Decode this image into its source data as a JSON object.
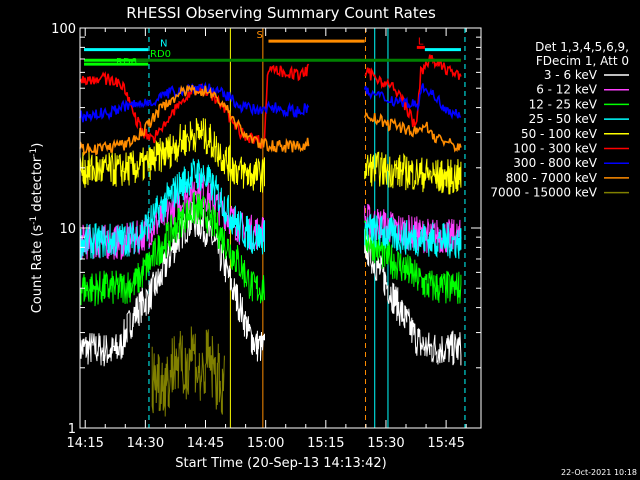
{
  "chart_data": {
    "type": "line",
    "title": "RHESSI Observing Summary Count Rates",
    "xlabel": "Start Time (20-Sep-13 14:13:42)",
    "ylabel_main": "Count Rate (s",
    "ylabel_sup": "-1",
    "ylabel_tail": " detector",
    "ylabel_end": ")",
    "yscale": "log",
    "ylim": [
      1,
      100
    ],
    "xlim_minutes": [
      0,
      100
    ],
    "x_ticks": [
      {
        "label": "14:15",
        "m": 1.3
      },
      {
        "label": "14:30",
        "m": 16.3
      },
      {
        "label": "14:45",
        "m": 31.3
      },
      {
        "label": "15:00",
        "m": 46.3
      },
      {
        "label": "15:15",
        "m": 61.3
      },
      {
        "label": "15:30",
        "m": 76.3
      },
      {
        "label": "15:45",
        "m": 91.3
      }
    ],
    "y_ticks": [
      {
        "label": "1",
        "v": 1
      },
      {
        "label": "10",
        "v": 10
      },
      {
        "label": "100",
        "v": 100
      }
    ],
    "legend_header": [
      "Det 1,3,4,5,6,9,",
      "FDecim 1, Att 0"
    ],
    "series": [
      {
        "name": "3 - 6 keV",
        "color": "#ffffff",
        "segments": [
          [
            [
              0,
              2.5
            ],
            [
              4,
              2.5
            ],
            [
              8,
              2.4
            ],
            [
              10,
              2.5
            ],
            [
              12,
              3.2
            ],
            [
              14,
              3.8
            ],
            [
              17,
              4.5
            ],
            [
              20,
              5.5
            ],
            [
              22,
              7
            ],
            [
              24,
              8.5
            ],
            [
              26,
              10
            ],
            [
              28,
              11
            ],
            [
              30,
              10.5
            ],
            [
              32,
              9.5
            ],
            [
              34,
              8
            ],
            [
              36,
              6.5
            ],
            [
              38,
              5
            ],
            [
              40,
              4
            ],
            [
              42,
              3
            ],
            [
              44,
              2.6
            ],
            [
              46,
              2.5
            ]
          ],
          [
            [
              71,
              8.5
            ],
            [
              73,
              7
            ],
            [
              75,
              6
            ],
            [
              77,
              5
            ],
            [
              79,
              4.2
            ],
            [
              81,
              3.5
            ],
            [
              83,
              3
            ],
            [
              85,
              2.6
            ],
            [
              87,
              2.5
            ],
            [
              95,
              2.5
            ]
          ]
        ]
      },
      {
        "name": "6 - 12 keV",
        "color": "#ff40ff",
        "segments": [
          [
            [
              0,
              8.5
            ],
            [
              10,
              8.5
            ],
            [
              14,
              8.8
            ],
            [
              18,
              10
            ],
            [
              22,
              12
            ],
            [
              26,
              14
            ],
            [
              29,
              16
            ],
            [
              31,
              15
            ],
            [
              34,
              13
            ],
            [
              37,
              11.5
            ],
            [
              40,
              10
            ],
            [
              43,
              9.5
            ],
            [
              46,
              9.5
            ]
          ],
          [
            [
              71,
              11
            ],
            [
              74,
              10.5
            ],
            [
              78,
              10
            ],
            [
              82,
              9.5
            ],
            [
              86,
              9.2
            ],
            [
              95,
              9
            ]
          ]
        ]
      },
      {
        "name": "12 - 25 keV",
        "color": "#00ff00",
        "segments": [
          [
            [
              0,
              5
            ],
            [
              10,
              5
            ],
            [
              14,
              5.3
            ],
            [
              18,
              7
            ],
            [
              22,
              9
            ],
            [
              26,
              11.5
            ],
            [
              29,
              12.5
            ],
            [
              31,
              12
            ],
            [
              34,
              10
            ],
            [
              37,
              8
            ],
            [
              40,
              6.5
            ],
            [
              43,
              5
            ],
            [
              46,
              5
            ]
          ],
          [
            [
              71,
              9
            ],
            [
              74,
              8
            ],
            [
              77,
              7
            ],
            [
              80,
              6.5
            ],
            [
              83,
              5.8
            ],
            [
              86,
              5.2
            ],
            [
              90,
              5
            ],
            [
              95,
              5
            ]
          ]
        ]
      },
      {
        "name": "25 - 50 keV",
        "color": "#00ffff",
        "segments": [
          [
            [
              0,
              8.5
            ],
            [
              10,
              8.7
            ],
            [
              14,
              9
            ],
            [
              18,
              11
            ],
            [
              22,
              14
            ],
            [
              26,
              17
            ],
            [
              29,
              19
            ],
            [
              31,
              18
            ],
            [
              34,
              15
            ],
            [
              37,
              12
            ],
            [
              40,
              10
            ],
            [
              43,
              9
            ],
            [
              46,
              9
            ]
          ],
          [
            [
              71,
              10
            ],
            [
              75,
              9.5
            ],
            [
              80,
              9
            ],
            [
              86,
              8.8
            ],
            [
              95,
              8.5
            ]
          ]
        ]
      },
      {
        "name": "50 - 100 keV",
        "color": "#ffff00",
        "segments": [
          [
            [
              0,
              19.5
            ],
            [
              10,
              19.5
            ],
            [
              14,
              20
            ],
            [
              17,
              21
            ],
            [
              20,
              23
            ],
            [
              23,
              25
            ],
            [
              25,
              27
            ],
            [
              28,
              29
            ],
            [
              30,
              30
            ],
            [
              32,
              28
            ],
            [
              34,
              25
            ],
            [
              37,
              21
            ],
            [
              40,
              19
            ],
            [
              43,
              18.5
            ],
            [
              46,
              18.5
            ]
          ],
          [
            [
              71,
              20
            ],
            [
              76,
              19.5
            ],
            [
              81,
              19
            ],
            [
              86,
              18.5
            ],
            [
              90,
              18
            ],
            [
              95,
              18
            ]
          ]
        ]
      },
      {
        "name": "100 - 300 keV",
        "color": "#ff0000",
        "segments": [
          [
            [
              0,
              55
            ],
            [
              4,
              56
            ],
            [
              8,
              55
            ],
            [
              10,
              53
            ],
            [
              12,
              45
            ],
            [
              14,
              35
            ],
            [
              16,
              30
            ],
            [
              18,
              28
            ],
            [
              20,
              30
            ],
            [
              22,
              35
            ],
            [
              25,
              42
            ],
            [
              28,
              48
            ],
            [
              30,
              50
            ],
            [
              32,
              48
            ],
            [
              35,
              42
            ],
            [
              38,
              34
            ],
            [
              40,
              30
            ],
            [
              43,
              28
            ],
            [
              46,
              27
            ],
            [
              47,
              64
            ],
            [
              51,
              60
            ],
            [
              55,
              58
            ],
            [
              57,
              62
            ]
          ],
          [
            [
              71,
              60
            ],
            [
              73,
              58
            ],
            [
              75,
              55
            ],
            [
              78,
              50
            ],
            [
              80,
              45
            ],
            [
              82,
              38
            ],
            [
              83,
              34
            ],
            [
              84,
              32
            ],
            [
              85,
              60
            ],
            [
              87,
              70
            ],
            [
              89,
              66
            ],
            [
              92,
              62
            ],
            [
              94,
              58
            ],
            [
              95,
              55
            ]
          ]
        ]
      },
      {
        "name": "300 - 800 keV",
        "color": "#0000ff",
        "segments": [
          [
            [
              0,
              36
            ],
            [
              4,
              37
            ],
            [
              8,
              38
            ],
            [
              10,
              40
            ],
            [
              13,
              41
            ],
            [
              16,
              42
            ],
            [
              19,
              44
            ],
            [
              22,
              47
            ],
            [
              25,
              49
            ],
            [
              28,
              50
            ],
            [
              30,
              51
            ],
            [
              32,
              50
            ],
            [
              35,
              47
            ],
            [
              38,
              44
            ],
            [
              40,
              41
            ],
            [
              43,
              39
            ],
            [
              46,
              38
            ],
            [
              47,
              41
            ],
            [
              51,
              39
            ],
            [
              55,
              38
            ],
            [
              57,
              41
            ]
          ],
          [
            [
              71,
              48
            ],
            [
              74,
              46
            ],
            [
              77,
              44
            ],
            [
              80,
              43
            ],
            [
              82,
              42
            ],
            [
              84,
              41
            ],
            [
              86,
              52
            ],
            [
              88,
              46
            ],
            [
              90,
              42
            ],
            [
              92,
              39
            ],
            [
              95,
              37
            ]
          ]
        ]
      },
      {
        "name": "800 - 7000 keV",
        "color": "#ff8c00",
        "segments": [
          [
            [
              0,
              25
            ],
            [
              4,
              25
            ],
            [
              8,
              25.5
            ],
            [
              11,
              26
            ],
            [
              13,
              27
            ],
            [
              16,
              31
            ],
            [
              19,
              37
            ],
            [
              22,
              43
            ],
            [
              25,
              47
            ],
            [
              28,
              49
            ],
            [
              30,
              49
            ],
            [
              32,
              48
            ],
            [
              35,
              43
            ],
            [
              38,
              36
            ],
            [
              40,
              31
            ],
            [
              43,
              27.5
            ],
            [
              46,
              26
            ],
            [
              47,
              26
            ],
            [
              51,
              25.5
            ],
            [
              55,
              25.5
            ],
            [
              57,
              27
            ]
          ],
          [
            [
              71,
              36
            ],
            [
              74,
              35
            ],
            [
              77,
              33
            ],
            [
              80,
              32
            ],
            [
              82,
              31
            ],
            [
              84,
              30
            ],
            [
              86,
              33
            ],
            [
              88,
              29
            ],
            [
              91,
              27
            ],
            [
              93,
              26
            ],
            [
              95,
              25
            ]
          ]
        ]
      },
      {
        "name": "7000 - 15000 keV",
        "color": "#808000",
        "segments": [
          [
            [
              18,
              1.8
            ],
            [
              22,
              1.7
            ],
            [
              24,
              2.3
            ],
            [
              26,
              1.8
            ],
            [
              28,
              2.6
            ],
            [
              30,
              1.7
            ],
            [
              32,
              2.2
            ],
            [
              34,
              1.8
            ],
            [
              36,
              1.6
            ]
          ]
        ]
      }
    ],
    "flag_lines": [
      {
        "label": "N",
        "color": "#00ffff",
        "level": 78,
        "segments": [
          [
            [
              1,
              17
            ]
          ],
          [
            [
              86,
              95
            ]
          ]
        ]
      },
      {
        "label": "RD0",
        "color": "#00ff00",
        "level": 69,
        "segments": [
          [
            [
              1,
              17
            ]
          ]
        ]
      },
      {
        "label": "RD6",
        "color": "#00ff00",
        "level": 66,
        "segments": [
          [
            [
              1,
              17
            ]
          ]
        ]
      },
      {
        "label": "S",
        "color": "#ff8c00",
        "level": 86,
        "segments": [
          [
            [
              47,
              71
            ]
          ]
        ]
      },
      {
        "label": "",
        "color": "#008000",
        "level": 69,
        "segments": [
          [
            [
              14,
              95
            ]
          ]
        ]
      },
      {
        "label": "L",
        "color": "#ff0000",
        "level": 80,
        "segments": [
          [
            [
              84,
              86
            ]
          ]
        ]
      }
    ],
    "vlines": [
      {
        "m": 0,
        "color": "#00ffff",
        "dash": false
      },
      {
        "m": 17.2,
        "color": "#00ffff",
        "dash": true
      },
      {
        "m": 37.5,
        "color": "#ffff00",
        "dash": false
      },
      {
        "m": 45.6,
        "color": "#ff8c00",
        "dash": false
      },
      {
        "m": 71.2,
        "color": "#ff8c00",
        "dash": true
      },
      {
        "m": 73.5,
        "color": "#00ffff",
        "dash": false
      },
      {
        "m": 76.8,
        "color": "#00ffff",
        "dash": false
      },
      {
        "m": 96,
        "color": "#00ffff",
        "dash": true
      }
    ],
    "timestamp": "22-Oct-2021 10:18"
  }
}
